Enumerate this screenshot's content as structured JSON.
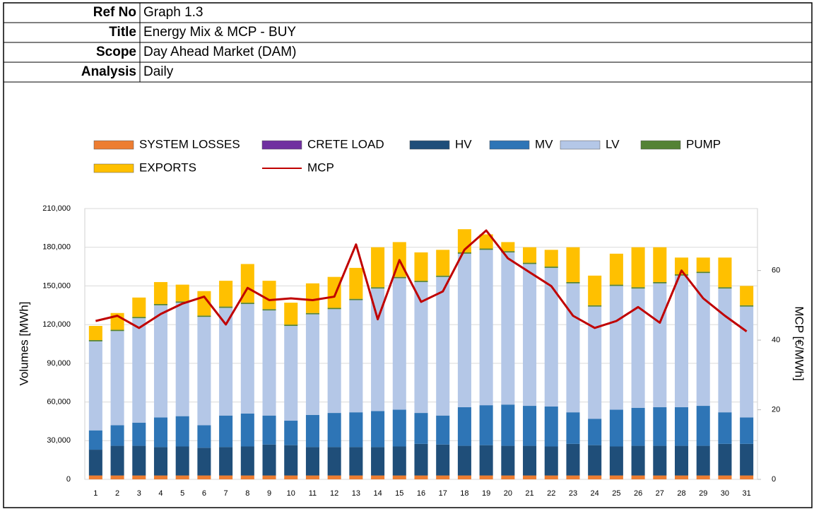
{
  "header": {
    "rows": [
      {
        "label": "Ref No",
        "value": "Graph 1.3"
      },
      {
        "label": "Title",
        "value": "Energy Mix & MCP - BUY"
      },
      {
        "label": "Scope",
        "value": "Day Ahead Market (DAM)"
      },
      {
        "label": "Analysis",
        "value": "Daily"
      }
    ]
  },
  "chart_data": {
    "type": "bar",
    "stacked": true,
    "y_label": "Volumes [MWh]",
    "y2_label": "MCP [€/MWh]",
    "categories": [
      "1",
      "2",
      "3",
      "4",
      "5",
      "6",
      "7",
      "8",
      "9",
      "10",
      "11",
      "12",
      "13",
      "14",
      "15",
      "16",
      "17",
      "18",
      "19",
      "20",
      "21",
      "22",
      "23",
      "24",
      "25",
      "26",
      "27",
      "28",
      "29",
      "30",
      "31"
    ],
    "ylim": [
      0,
      210000
    ],
    "yticks": [
      0,
      {
        "value": 30000,
        "label": "30,000"
      },
      {
        "value": 60000,
        "label": "60,000"
      },
      {
        "value": 90000,
        "label": "90,000"
      },
      {
        "value": 120000,
        "label": "120,000"
      },
      {
        "value": 150000,
        "label": "150,000"
      },
      {
        "value": 180000,
        "label": "180,000"
      },
      {
        "value": 210000,
        "label": "210,000"
      }
    ],
    "y2lim": [
      0,
      77.8
    ],
    "y2ticks": [
      0,
      20,
      40,
      60
    ],
    "grid": true,
    "series": [
      {
        "name": "SYSTEM LOSSES",
        "type": "bar",
        "color": "#ed7d31",
        "values": [
          3000,
          3000,
          3000,
          3000,
          3000,
          3000,
          3000,
          3000,
          3000,
          3000,
          3000,
          3000,
          3000,
          3000,
          3000,
          3000,
          3000,
          3000,
          3000,
          3000,
          3000,
          3000,
          3000,
          3000,
          3000,
          3000,
          3000,
          3000,
          3000,
          3000,
          3000
        ]
      },
      {
        "name": "CRETE LOAD",
        "type": "bar",
        "color": "#7030a0",
        "values": [
          0,
          0,
          0,
          0,
          0,
          0,
          0,
          0,
          0,
          0,
          0,
          0,
          0,
          0,
          0,
          0,
          0,
          0,
          0,
          0,
          0,
          0,
          0,
          0,
          0,
          0,
          0,
          0,
          0,
          0,
          0
        ]
      },
      {
        "name": "HV",
        "type": "bar",
        "color": "#1f4e79",
        "values": [
          20000,
          23000,
          23000,
          22000,
          22500,
          21500,
          22000,
          22500,
          24000,
          23500,
          22000,
          22000,
          22000,
          22000,
          22500,
          24500,
          24000,
          23000,
          23500,
          23000,
          23000,
          22500,
          24500,
          23500,
          22500,
          23000,
          23000,
          23000,
          23000,
          24500,
          24500
        ]
      },
      {
        "name": "MV",
        "type": "bar",
        "color": "#2e75b6",
        "values": [
          15000,
          16000,
          18000,
          23000,
          23500,
          17500,
          24500,
          25500,
          22500,
          19000,
          25000,
          26500,
          27000,
          28000,
          28500,
          24000,
          22500,
          30000,
          31000,
          32000,
          31000,
          31000,
          24500,
          20500,
          28500,
          29500,
          30000,
          30000,
          31000,
          24500,
          20500
        ]
      },
      {
        "name": "LV",
        "type": "bar",
        "color": "#b4c7e7",
        "values": [
          69000,
          73000,
          81000,
          87000,
          88000,
          84000,
          83500,
          85000,
          81500,
          73500,
          78000,
          80500,
          87000,
          95000,
          102000,
          101500,
          107500,
          119000,
          120500,
          118000,
          110000,
          107500,
          100000,
          87000,
          96000,
          92500,
          96000,
          102000,
          103000,
          96000,
          86000
        ]
      },
      {
        "name": "PUMP",
        "type": "bar",
        "color": "#548235",
        "values": [
          1000,
          1000,
          1000,
          1000,
          1000,
          1000,
          1000,
          1000,
          1000,
          1000,
          1000,
          1000,
          1000,
          1000,
          1000,
          1000,
          1000,
          1000,
          1000,
          1000,
          1000,
          1000,
          1000,
          1000,
          1000,
          1000,
          1000,
          1000,
          1000,
          1000,
          1000
        ]
      },
      {
        "name": "EXPORTS",
        "type": "bar",
        "color": "#ffc000",
        "values": [
          11000,
          13000,
          15000,
          17000,
          13000,
          19000,
          20000,
          30000,
          22000,
          17000,
          23000,
          24000,
          24000,
          31000,
          27000,
          22000,
          20000,
          18000,
          11000,
          7000,
          12000,
          13000,
          27000,
          23000,
          24000,
          31000,
          27000,
          13000,
          11000,
          23000,
          15000
        ]
      },
      {
        "name": "MCP",
        "type": "line",
        "axis": "y2",
        "color": "#c00000",
        "values": [
          45.5,
          47,
          43.5,
          47.5,
          50.5,
          52.5,
          44.5,
          55,
          51.5,
          52,
          51.5,
          52.5,
          67.5,
          46,
          63,
          51,
          54,
          66,
          71.5,
          63.5,
          59.5,
          55.5,
          47,
          43.5,
          45.5,
          49.5,
          45,
          60,
          52,
          47,
          42.5
        ]
      }
    ]
  }
}
